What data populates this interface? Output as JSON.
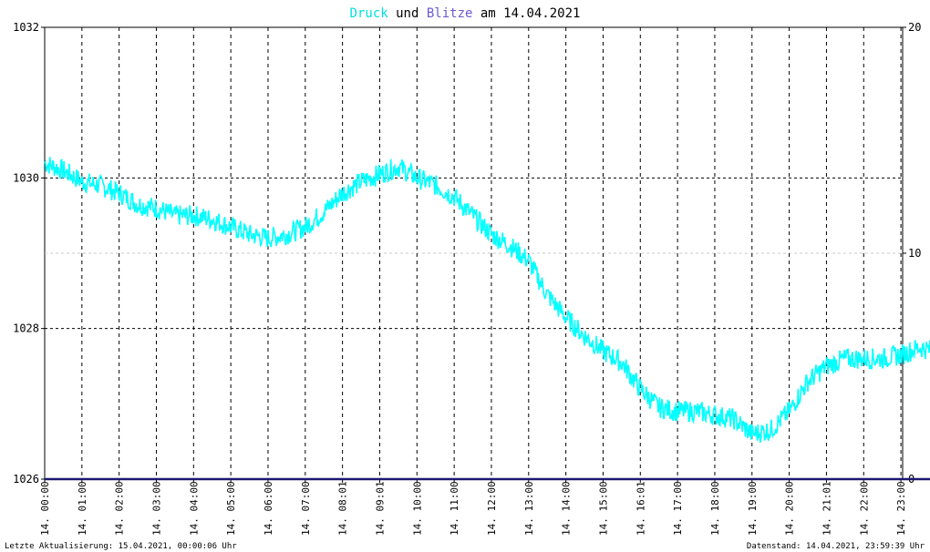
{
  "title": {
    "druck_label": "Druck",
    "und_label": "und",
    "blitze_label": "Blitze",
    "date_label": "am 14.04.2021",
    "druck_color": "#00e0e0",
    "blitze_color": "#6a5acd"
  },
  "footer": {
    "last_update": "Letzte Aktualisierung: 15.04.2021, 00:00:06 Uhr",
    "data_state": "Datenstand: 14.04.2021, 23:59:39 Uhr"
  },
  "chart_data": {
    "type": "line",
    "title": "Druck und Blitze am 14.04.2021",
    "xlabel": "",
    "ylabel": "",
    "x_ticks": [
      "14. 00:00",
      "14. 01:00",
      "14. 02:00",
      "14. 03:00",
      "14. 04:00",
      "14. 05:00",
      "14. 06:00",
      "14. 07:00",
      "14. 08:01",
      "14. 09:01",
      "14. 10:00",
      "14. 11:00",
      "14. 12:00",
      "14. 13:00",
      "14. 14:00",
      "14. 15:00",
      "14. 16:01",
      "14. 17:00",
      "14. 18:00",
      "14. 19:00",
      "14. 20:00",
      "14. 21:01",
      "14. 22:00",
      "14. 23:00"
    ],
    "y_left": {
      "range": [
        1026,
        1032
      ],
      "ticks": [
        "1026",
        "1028",
        "1030",
        "1032"
      ]
    },
    "y_right": {
      "range": [
        0,
        20
      ],
      "ticks": [
        "0",
        "10",
        "20"
      ]
    },
    "grid": true,
    "series": [
      {
        "name": "Druck",
        "color": "#00ffff",
        "axis": "left",
        "x_hours": [
          0,
          0.5,
          1,
          1.5,
          2,
          2.5,
          3,
          3.5,
          4,
          4.5,
          5,
          5.5,
          6,
          6.5,
          7,
          7.5,
          8,
          8.5,
          9,
          9.5,
          10,
          10.5,
          11,
          11.5,
          12,
          12.5,
          13,
          13.5,
          14,
          14.5,
          15,
          15.5,
          16,
          16.5,
          17,
          17.5,
          18,
          18.5,
          19,
          19.5,
          20,
          20.5,
          21,
          21.5,
          22,
          22.5,
          23,
          23.5,
          23.9
        ],
        "y": [
          1030.2,
          1030.1,
          1029.95,
          1029.9,
          1029.8,
          1029.65,
          1029.6,
          1029.5,
          1029.5,
          1029.45,
          1029.35,
          1029.25,
          1029.2,
          1029.25,
          1029.35,
          1029.55,
          1029.8,
          1029.95,
          1030.05,
          1030.15,
          1030.0,
          1029.9,
          1029.75,
          1029.5,
          1029.25,
          1029.1,
          1028.9,
          1028.45,
          1028.15,
          1027.9,
          1027.7,
          1027.55,
          1027.2,
          1026.95,
          1026.9,
          1026.9,
          1026.85,
          1026.8,
          1026.6,
          1026.65,
          1026.9,
          1027.3,
          1027.5,
          1027.6,
          1027.6,
          1027.6,
          1027.65,
          1027.75,
          1027.7
        ]
      },
      {
        "name": "Blitze",
        "color": "#191970",
        "axis": "right",
        "x_hours": [
          0,
          23.98
        ],
        "y": [
          0,
          0
        ]
      }
    ]
  }
}
